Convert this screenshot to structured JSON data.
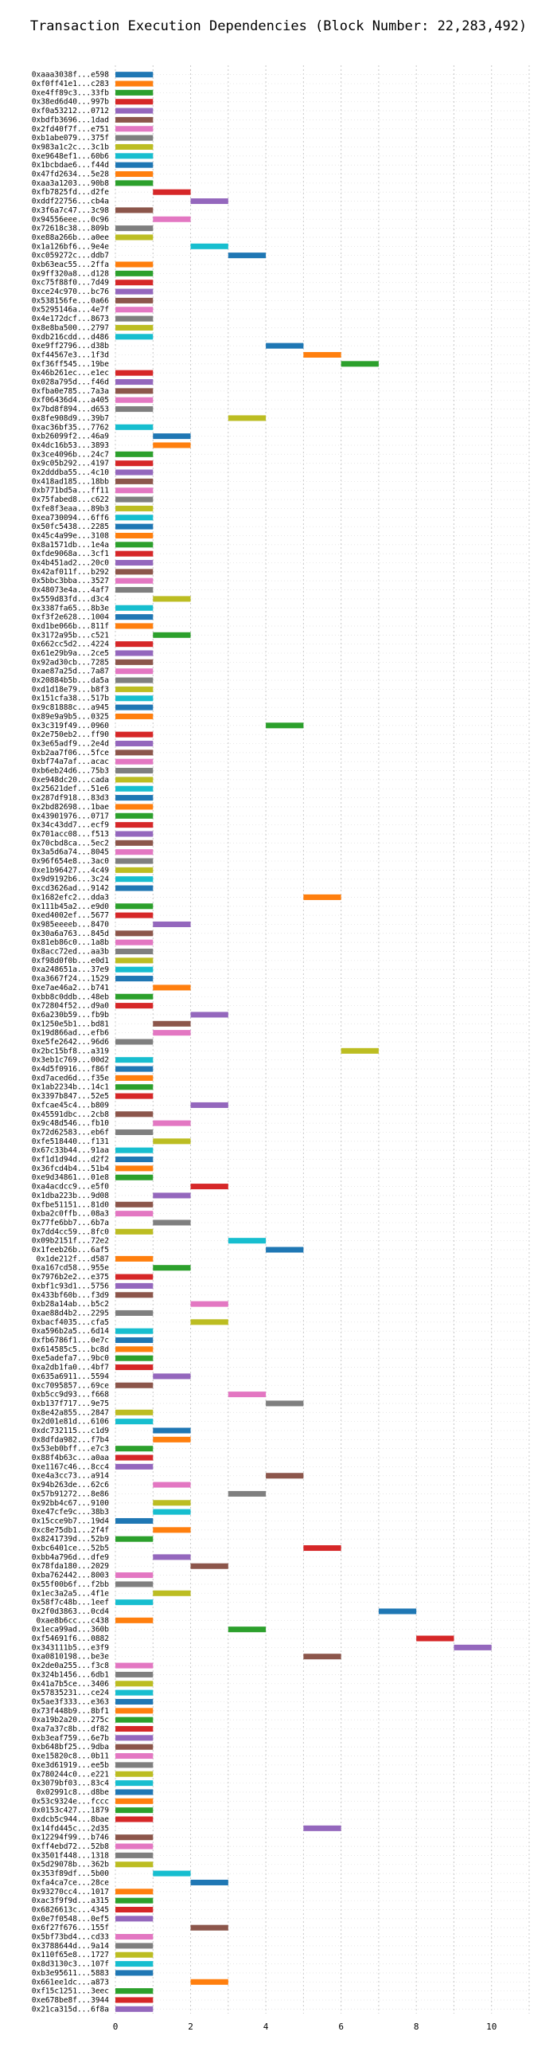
{
  "chart_data": {
    "type": "bar",
    "orientation": "horizontal",
    "title": "Transaction Execution Dependencies (Block Number: 22,283,492)",
    "xlim": [
      0,
      11
    ],
    "xticks": [
      0,
      2,
      4,
      6,
      8,
      10
    ],
    "grid": true,
    "grid_style": "dotted",
    "palette": [
      "#1f77b4",
      "#ff7f0e",
      "#2ca02c",
      "#d62728",
      "#9467bd",
      "#8c564b",
      "#e377c2",
      "#7f7f7f",
      "#bcbd22",
      "#17becf"
    ],
    "bar_length": 1,
    "categories": [
      "0xaaa3038f...e598",
      "0xf0ff41e1...c283",
      "0xe4ff89c3...33fb",
      "0x38ed6d40...997b",
      "0xf0a53212...0712",
      "0xbdfb3696...1dad",
      "0x2fd40f7f...e751",
      "0xb1abe079...375f",
      "0x983a1c2c...3c1b",
      "0xe9648ef1...60b6",
      "0x1bcbdae6...f44d",
      "0x47fd2634...5e28",
      "0xaa3a1203...90b8",
      "0xfb7825fd...d2fe",
      "0xddf22756...cb4a",
      "0x3f6a7c47...3c98",
      "0x94556eee...0c96",
      "0x72618c38...809b",
      "0xe88a266b...a0ee",
      "0x1a126bf6...9e4e",
      "0xc059272c...ddb7",
      "0xb63eac55...2ffa",
      "0x9ff320a8...d128",
      "0xc75f88f0...7d49",
      "0xce24c970...bc76",
      "0x538156fe...0a66",
      "0x5295146a...4e7f",
      "0x4e172dcf...8673",
      "0x8e8ba500...2797",
      "0xdb216cdd...d486",
      "0xe9ff2796...d38b",
      "0xf44567e3...1f3d",
      "0xf36ff545...19be",
      "0x46b261ec...e1ec",
      "0x028a795d...f46d",
      "0xfba0e785...7a3a",
      "0xf06436d4...a405",
      "0x7bd8f894...d653",
      "0x8fe908d9...39b7",
      "0xac36bf35...7762",
      "0xb26099f2...46a9",
      "0x4dc16b53...3893",
      "0x3ce4096b...24c7",
      "0x9c05b292...4197",
      "0x2dddba55...4c10",
      "0x418ad185...18bb",
      "0xb771bd5a...ff11",
      "0x75fabed8...c622",
      "0xfe8f3eaa...89b3",
      "0xea730094...6ff6",
      "0x50fc5438...2285",
      "0x45c4a99e...3108",
      "0x8a1571db...1e4a",
      "0xfde9068a...3cf1",
      "0x4b451ad2...20c0",
      "0x42af011f...b292",
      "0x5bbc3bba...3527",
      "0x48073e4a...4af7",
      "0x559d83fd...d3c4",
      "0x3387fa65...8b3e",
      "0xf3f2e628...1004",
      "0xd1be066b...811f",
      "0x3172a95b...c521",
      "0x662cc5d2...4224",
      "0x61e29b9a...2ce5",
      "0x92ad30cb...7285",
      "0xae87a25d...7a87",
      "0x20884b5b...da5a",
      "0xd1d18e79...b8f3",
      "0x151cfa38...517b",
      "0x9c81888c...a945",
      "0x89e9a9b5...0325",
      "0x3c319f49...0960",
      "0x2e750eb2...ff90",
      "0x3e65adf9...2e4d",
      "0xb2aa7f06...5fce",
      "0xbf74a7af...acac",
      "0xb6eb24d6...75b3",
      "0xe948dc20...cada",
      "0x25621def...51e6",
      "0x287df918...83d3",
      "0x2bd82698...1bae",
      "0x43901976...0717",
      "0x34c43dd7...ecf9",
      "0x701acc08...f513",
      "0x70cbd8ca...5ec2",
      "0x3a5d6a74...8045",
      "0x96f654e8...3ac0",
      "0xe1b96427...4c49",
      "0x9d9192b6...3c24",
      "0xcd3626ad...9142",
      "0x1682efc2...dda3",
      "0x111b45a2...e9d0",
      "0xed4002ef...5677",
      "0x985eeeeb...8470",
      "0x30a6a763...845d",
      "0x81eb86c0...1a8b",
      "0x8acc72ed...aa3b",
      "0xf98d0f0b...e0d1",
      "0xa248651a...37e9",
      "0xa3667f24...1529",
      "0xe7ae46a2...b741",
      "0xbb8c0ddb...48eb",
      "0x72804f52...d9a0",
      "0x6a230b59...fb9b",
      "0x1250e5b1...bd81",
      "0x19d866ad...efb6",
      "0xe5fe2642...96d6",
      "0x2bc15bf8...a319",
      "0x3eb1c769...00d2",
      "0x4d5f0916...f86f",
      "0xd7aced6d...f35e",
      "0x1ab2234b...14c1",
      "0x3397b847...52e5",
      "0xfcae45c4...b809",
      "0x45591dbc...2cb8",
      "0x9c48d546...fb10",
      "0x72d62583...eb6f",
      "0xfe518440...f131",
      "0x67c33b44...91aa",
      "0xf1d1d94d...d2f2",
      "0x36fcd4b4...51b4",
      "0xe9d34861...01e8",
      "0xa4acdcc9...e5f0",
      "0x1dba223b...9d08",
      "0xfbe51151...81d0",
      "0xba2c0ffb...08a3",
      "0x77fe6bb7...6b7a",
      "0x7dd4cc59...8fc0",
      "0x09b2151f...72e2",
      "0x1feeb26b...6af5",
      "0x1de212f...d587",
      "0xa167cd58...955e",
      "0x7976b2e2...e375",
      "0xbf1c93d1...5756",
      "0x433bf60b...f3d9",
      "0xb28a14ab...b5c2",
      "0xae88d4b2...2295",
      "0xbacf4035...cfa5",
      "0xa596b2a5...6d14",
      "0xfb6786f1...0e7c",
      "0x614585c5...bc8d",
      "0xe5adefa7...9bc0",
      "0xa2db1fa0...4bf7",
      "0x635a6911...5594",
      "0xc7095857...69ce",
      "0xb5cc9d93...f668",
      "0xb137f717...9e75",
      "0x8e42a855...2847",
      "0x2d01e81d...6106",
      "0xdc732115...c1d9",
      "0x8dfda982...f7b4",
      "0x53eb0bff...e7c3",
      "0x88f4b63c...a0aa",
      "0xe1167c46...8cc4",
      "0xe4a3cc73...a914",
      "0x94b263de...62c6",
      "0x57b91272...8e86",
      "0x92bb4c67...9100",
      "0xe47cfe9c...38b3",
      "0x15cce9b7...19d4",
      "0xc8e75db1...2f4f",
      "0x8241739d...52b9",
      "0xbc6401ce...52b5",
      "0xbb4a796d...dfe9",
      "0x78fda180...2029",
      "0xba762442...8003",
      "0x55f00b6f...f2bb",
      "0x1ec3a2a5...4f1e",
      "0x58f7c48b...1eef",
      "0x2f0d3863...0cd4",
      "0xae8b6cc...c438",
      "0x1eca99ad...360b",
      "0xf54691f6...0882",
      "0x343111b5...e3f9",
      "0xa0810198...be3e",
      "0x2de0a255...f3c8",
      "0x324b1456...6db1",
      "0x41a7b5ce...3406",
      "0x57835231...ce24",
      "0x5ae3f333...e363",
      "0x73f448b9...8bf1",
      "0xa19b2a20...275c",
      "0xa7a37c8b...df82",
      "0xb3eaf759...6e7b",
      "0xb648bf25...9dba",
      "0xe15820c8...0b11",
      "0xe3d61919...ee5b",
      "0x780244c0...e221",
      "0x3079bf03...83c4",
      "0x02991c8...d8be",
      "0x53c9324e...fccc",
      "0x0153c427...1879",
      "0xdcb5c944...8bae",
      "0x14fd445c...2d35",
      "0x12294f99...b746",
      "0xff4ebd72...52b8",
      "0x3501f448...1318",
      "0x5d29078b...362b",
      "0x353f89df...5b00",
      "0xfa4ca7ce...28ce",
      "0x93270cc4...1017",
      "0xac3f9f9d...a315",
      "0x6826613c...4345",
      "0x0e7f0548...0ef5",
      "0x6f27f676...155f",
      "0x5bf73bd4...cd33",
      "0x3788644d...9a14",
      "0x110f65e8...1727",
      "0x8d3130c3...107f",
      "0xb3e95611...5883",
      "0x661ee1dc...a873",
      "0xf15c1251...3eec",
      "0xe678be8f...3944",
      "0x21ca315d...6f8a"
    ],
    "start": [
      0,
      0,
      0,
      0,
      0,
      0,
      0,
      0,
      0,
      0,
      0,
      0,
      0,
      1,
      2,
      0,
      1,
      0,
      0,
      2,
      3,
      0,
      0,
      0,
      0,
      0,
      0,
      0,
      0,
      0,
      4,
      5,
      6,
      0,
      0,
      0,
      0,
      0,
      3,
      0,
      1,
      1,
      0,
      0,
      0,
      0,
      0,
      0,
      0,
      0,
      0,
      0,
      0,
      0,
      0,
      0,
      0,
      0,
      1,
      0,
      0,
      0,
      1,
      0,
      0,
      0,
      0,
      0,
      0,
      0,
      0,
      0,
      4,
      0,
      0,
      0,
      0,
      0,
      0,
      0,
      0,
      0,
      0,
      0,
      0,
      0,
      0,
      0,
      0,
      0,
      0,
      5,
      0,
      0,
      1,
      0,
      0,
      0,
      0,
      0,
      0,
      1,
      0,
      0,
      2,
      1,
      1,
      0,
      6,
      0,
      0,
      0,
      0,
      0,
      2,
      0,
      1,
      0,
      1,
      0,
      0,
      0,
      0,
      2,
      1,
      0,
      0,
      1,
      0,
      3,
      4,
      0,
      1,
      0,
      0,
      0,
      2,
      0,
      2,
      0,
      0,
      0,
      0,
      0,
      1,
      0,
      3,
      4,
      0,
      0,
      1,
      1,
      0,
      0,
      0,
      4,
      1,
      3,
      1,
      1,
      0,
      1,
      0,
      5,
      1,
      2,
      0,
      0,
      1,
      0,
      7,
      0,
      3,
      8,
      9,
      5,
      0,
      0,
      0,
      0,
      0,
      0,
      0,
      0,
      0,
      0,
      0,
      0,
      0,
      0,
      0,
      0,
      0,
      0,
      5,
      0,
      0,
      0,
      0,
      1,
      2,
      0,
      0,
      0,
      0,
      2,
      0,
      0,
      0,
      0,
      0,
      2,
      0,
      0,
      0
    ],
    "colors": [
      0,
      1,
      2,
      3,
      4,
      5,
      6,
      7,
      8,
      9,
      0,
      1,
      2,
      3,
      4,
      5,
      6,
      7,
      8,
      9,
      0,
      1,
      2,
      3,
      4,
      5,
      6,
      7,
      8,
      9,
      0,
      1,
      2,
      3,
      4,
      5,
      6,
      7,
      8,
      9,
      0,
      1,
      2,
      3,
      4,
      5,
      6,
      7,
      8,
      9,
      0,
      1,
      2,
      3,
      4,
      5,
      6,
      7,
      8,
      9,
      0,
      1,
      2,
      3,
      4,
      5,
      6,
      7,
      8,
      9,
      0,
      1,
      2,
      3,
      4,
      5,
      6,
      7,
      8,
      9,
      0,
      1,
      2,
      3,
      4,
      5,
      6,
      7,
      8,
      9,
      0,
      1,
      2,
      3,
      4,
      5,
      6,
      7,
      8,
      9,
      0,
      1,
      2,
      3,
      4,
      5,
      6,
      7,
      8,
      9,
      0,
      1,
      2,
      3,
      4,
      5,
      6,
      7,
      8,
      9,
      0,
      1,
      2,
      3,
      4,
      5,
      6,
      7,
      8,
      9,
      0,
      1,
      2,
      3,
      4,
      5,
      6,
      7,
      8,
      9,
      0,
      1,
      2,
      3,
      4,
      5,
      6,
      7,
      8,
      9,
      0,
      1,
      2,
      3,
      4,
      5,
      6,
      7,
      8,
      9,
      0,
      1,
      2,
      3,
      4,
      5,
      6,
      7,
      8,
      9,
      0,
      1,
      2,
      3,
      4,
      5,
      6,
      7,
      8,
      9,
      0,
      1,
      2,
      3,
      4,
      5,
      6,
      7,
      8,
      9,
      0,
      1,
      2,
      3,
      4,
      5,
      6,
      7,
      8,
      9,
      0,
      1,
      2,
      3,
      4,
      5,
      6,
      7,
      8,
      9,
      0,
      1,
      2,
      3,
      4
    ]
  }
}
